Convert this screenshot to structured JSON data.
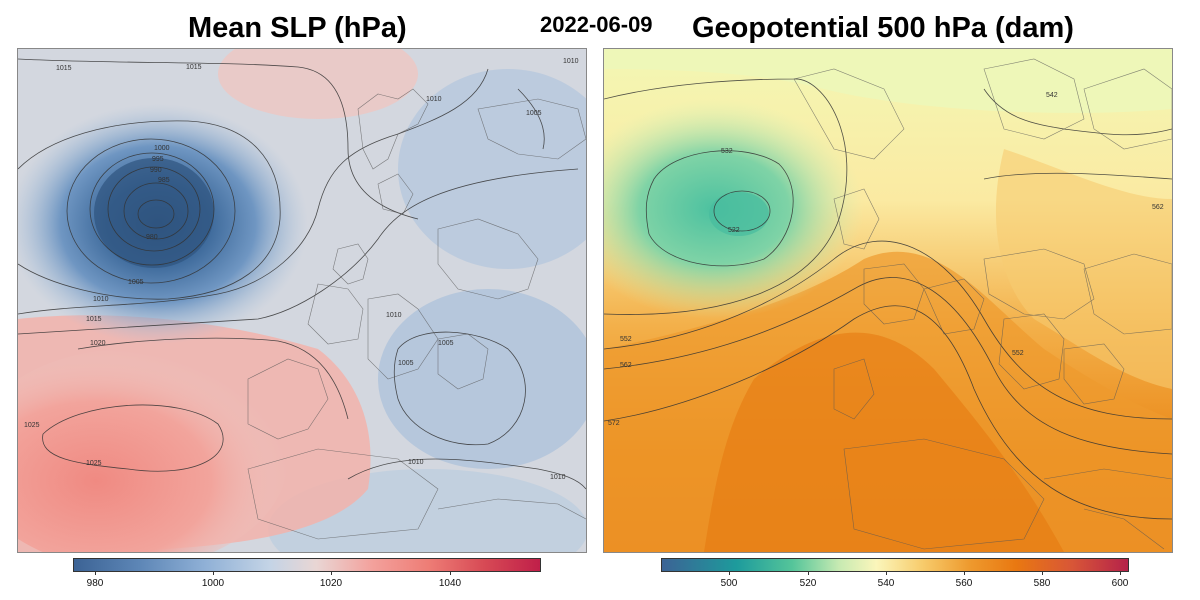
{
  "date": "2022-06-09",
  "left_map": {
    "title": "Mean SLP (hPa)",
    "contour_labels": [
      "1015",
      "1015",
      "1010",
      "1010",
      "1005",
      "1000",
      "995",
      "990",
      "985",
      "980",
      "1005",
      "1010",
      "1015",
      "1020",
      "1025",
      "1025",
      "1010",
      "1005",
      "1005",
      "1010",
      "1010"
    ],
    "colorbar": {
      "ticks": [
        "980",
        "1000",
        "1020",
        "1040"
      ],
      "colors": [
        "#3c6395",
        "#8fb0d6",
        "#e9d6d4",
        "#ee7d76",
        "#c01f49"
      ]
    }
  },
  "right_map": {
    "title": "Geopotential 500 hPa (dam)",
    "contour_labels": [
      "542",
      "532",
      "522",
      "562",
      "552",
      "562",
      "552",
      "572"
    ],
    "colorbar": {
      "ticks": [
        "500",
        "520",
        "540",
        "560",
        "580",
        "600"
      ],
      "colors": [
        "#3c6395",
        "#1d9b9c",
        "#c7eab2",
        "#fbf6bb",
        "#ee9a2e",
        "#b5224a"
      ]
    }
  }
}
